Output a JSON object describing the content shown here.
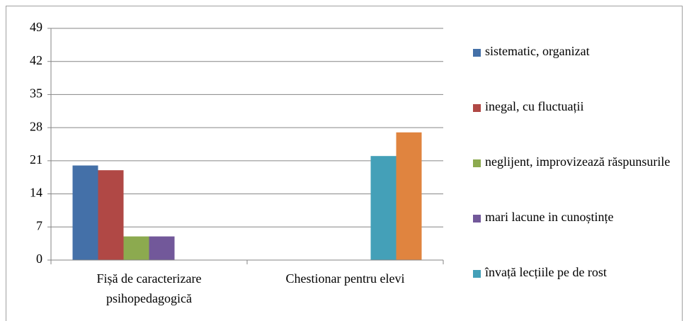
{
  "chart_data": {
    "type": "bar",
    "categories": [
      "Fișă de caracterizare psihopedagogică",
      "Chestionar pentru elevi"
    ],
    "series": [
      {
        "name": "sistematic, organizat",
        "color": "#4470a8",
        "values": [
          20,
          0
        ]
      },
      {
        "name": "inegal, cu fluctuații",
        "color": "#b04845",
        "values": [
          19,
          0
        ]
      },
      {
        "name": "neglijent, improvizează răspunsurile",
        "color": "#8caa4f",
        "values": [
          5,
          0
        ]
      },
      {
        "name": "mari lacune in cunoștințe",
        "color": "#72589a",
        "values": [
          5,
          0
        ]
      },
      {
        "name": "învață lecțiile pe de rost",
        "color": "#44a0b8",
        "values": [
          0,
          22
        ]
      },
      {
        "color": "#e0843f",
        "values": [
          0,
          27
        ]
      }
    ],
    "ylim": [
      0,
      49
    ],
    "yticks": [
      0,
      7,
      14,
      21,
      28,
      35,
      42,
      49
    ],
    "grid": true,
    "legend": "right"
  }
}
